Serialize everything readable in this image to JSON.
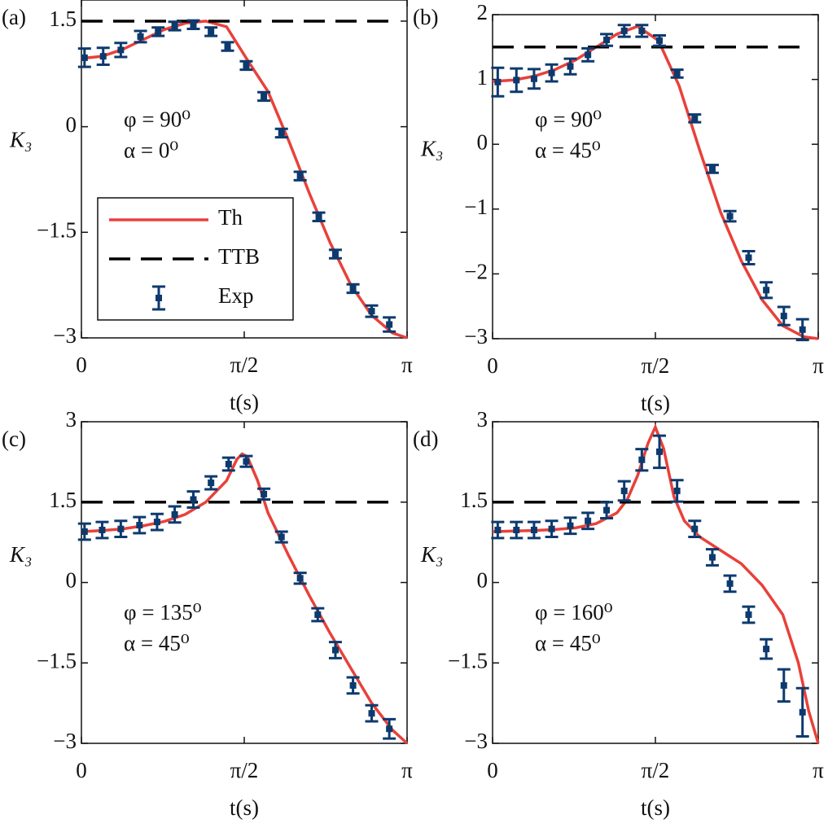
{
  "chart_data": [
    {
      "type": "line",
      "label": "(a)",
      "xlabel": "t(s)",
      "ylabel": "K₃",
      "annotations": [
        "φ = 90⁰",
        "α = 0⁰"
      ],
      "legend": "lower left",
      "xlim": [
        0,
        3.1416
      ],
      "xticks": [
        0,
        {
          "value": 1.5708,
          "label": "π/2"
        },
        {
          "value": 3.1416,
          "label": "π"
        }
      ],
      "ylim": [
        -3,
        1.8
      ],
      "yticks": [
        {
          "value": -3,
          "label": "−3"
        },
        {
          "value": -1.5,
          "label": "−1.5"
        },
        0,
        1.5
      ],
      "series": [
        {
          "name": "Th",
          "style": "solid",
          "color": "#e8413a",
          "x": [
            0,
            0.2,
            0.4,
            0.6,
            0.8,
            1.0,
            1.2,
            1.4,
            1.6,
            1.8,
            2.0,
            2.2,
            2.4,
            2.6,
            2.8,
            3.0,
            3.1416
          ],
          "values": [
            0.97,
            1.0,
            1.1,
            1.24,
            1.38,
            1.47,
            1.5,
            1.42,
            0.95,
            0.5,
            -0.2,
            -0.95,
            -1.65,
            -2.25,
            -2.68,
            -2.93,
            -3.0
          ]
        },
        {
          "name": "TTB",
          "style": "dashed",
          "color": "#000000",
          "x": [
            0,
            3.05
          ],
          "values": [
            1.5,
            1.5
          ]
        },
        {
          "name": "Exp",
          "style": "errorbar",
          "color": "#0d3a6e",
          "x": [
            0.03,
            0.21,
            0.38,
            0.57,
            0.74,
            0.9,
            1.08,
            1.25,
            1.41,
            1.59,
            1.76,
            1.93,
            2.11,
            2.29,
            2.45,
            2.62,
            2.8,
            2.97
          ],
          "values": [
            0.98,
            1.0,
            1.09,
            1.28,
            1.35,
            1.43,
            1.45,
            1.35,
            1.14,
            0.87,
            0.43,
            -0.09,
            -0.7,
            -1.28,
            -1.81,
            -2.3,
            -2.62,
            -2.81
          ],
          "errors": [
            0.13,
            0.12,
            0.1,
            0.08,
            0.06,
            0.06,
            0.06,
            0.06,
            0.06,
            0.06,
            0.06,
            0.06,
            0.06,
            0.06,
            0.06,
            0.06,
            0.08,
            0.1
          ]
        }
      ]
    },
    {
      "type": "line",
      "label": "(b)",
      "xlabel": "t(s)",
      "ylabel": "K₃",
      "annotations": [
        "φ = 90⁰",
        "α = 45⁰"
      ],
      "xlim": [
        0,
        3.1416
      ],
      "xticks": [
        0,
        {
          "value": 1.5708,
          "label": "π/2"
        },
        {
          "value": 3.1416,
          "label": "π"
        }
      ],
      "ylim": [
        -3,
        2
      ],
      "yticks": [
        {
          "value": -3,
          "label": "−3"
        },
        {
          "value": -2,
          "label": "−2"
        },
        {
          "value": -1,
          "label": "−1"
        },
        0,
        1,
        2
      ],
      "series": [
        {
          "style": "solid",
          "color": "#e8413a",
          "x": [
            0,
            0.2,
            0.4,
            0.6,
            0.8,
            1.0,
            1.2,
            1.4,
            1.6,
            1.8,
            2.0,
            2.2,
            2.4,
            2.6,
            2.8,
            3.0,
            3.1416
          ],
          "values": [
            0.97,
            0.99,
            1.05,
            1.15,
            1.3,
            1.5,
            1.7,
            1.82,
            1.6,
            0.9,
            -0.1,
            -1.05,
            -1.8,
            -2.4,
            -2.8,
            -2.97,
            -3.0
          ]
        },
        {
          "style": "dashed",
          "color": "#000000",
          "x": [
            0,
            3.05
          ],
          "values": [
            1.5,
            1.5
          ]
        },
        {
          "style": "errorbar",
          "color": "#0d3a6e",
          "x": [
            0.05,
            0.23,
            0.4,
            0.57,
            0.75,
            0.92,
            1.1,
            1.27,
            1.44,
            1.61,
            1.78,
            1.95,
            2.12,
            2.29,
            2.47,
            2.64,
            2.81,
            2.99
          ],
          "values": [
            0.96,
            0.99,
            1.01,
            1.1,
            1.2,
            1.38,
            1.61,
            1.75,
            1.75,
            1.6,
            1.09,
            0.4,
            -0.38,
            -1.11,
            -1.75,
            -2.25,
            -2.65,
            -2.86
          ],
          "errors": [
            0.22,
            0.18,
            0.15,
            0.13,
            0.12,
            0.1,
            0.09,
            0.09,
            0.09,
            0.08,
            0.06,
            0.06,
            0.06,
            0.08,
            0.1,
            0.12,
            0.14,
            0.16
          ]
        }
      ]
    },
    {
      "type": "line",
      "label": "(c)",
      "xlabel": "t(s)",
      "ylabel": "K₃",
      "annotations": [
        "φ = 135⁰",
        "α = 45⁰"
      ],
      "xlim": [
        0,
        3.1416
      ],
      "xticks": [
        0,
        {
          "value": 1.5708,
          "label": "π/2"
        },
        {
          "value": 3.1416,
          "label": "π"
        }
      ],
      "ylim": [
        -3,
        3
      ],
      "yticks": [
        {
          "value": -3,
          "label": "−3"
        },
        {
          "value": -1.5,
          "label": "−1.5"
        },
        0,
        1.5,
        3
      ],
      "series": [
        {
          "style": "solid",
          "color": "#e8413a",
          "x": [
            0,
            0.2,
            0.4,
            0.6,
            0.8,
            1.0,
            1.2,
            1.4,
            1.5,
            1.55,
            1.6,
            1.7,
            1.8,
            2.0,
            2.2,
            2.4,
            2.6,
            2.8,
            3.0,
            3.1416
          ],
          "values": [
            0.95,
            0.97,
            1.0,
            1.06,
            1.14,
            1.27,
            1.5,
            1.9,
            2.3,
            2.4,
            2.35,
            1.9,
            1.3,
            0.5,
            -0.25,
            -0.95,
            -1.6,
            -2.25,
            -2.75,
            -3.0
          ]
        },
        {
          "style": "dashed",
          "color": "#000000",
          "x": [
            0,
            3.05
          ],
          "values": [
            1.5,
            1.5
          ]
        },
        {
          "style": "errorbar",
          "color": "#0d3a6e",
          "x": [
            0.03,
            0.2,
            0.38,
            0.56,
            0.73,
            0.9,
            1.08,
            1.25,
            1.42,
            1.59,
            1.76,
            1.93,
            2.11,
            2.28,
            2.45,
            2.62,
            2.8,
            2.97
          ],
          "values": [
            0.95,
            0.98,
            1.0,
            1.07,
            1.13,
            1.27,
            1.55,
            1.86,
            2.21,
            2.26,
            1.65,
            0.85,
            0.08,
            -0.6,
            -1.26,
            -1.92,
            -2.44,
            -2.73
          ],
          "errors": [
            0.15,
            0.15,
            0.15,
            0.15,
            0.15,
            0.15,
            0.15,
            0.12,
            0.12,
            0.1,
            0.1,
            0.1,
            0.1,
            0.12,
            0.15,
            0.15,
            0.15,
            0.18
          ]
        }
      ]
    },
    {
      "type": "line",
      "label": "(d)",
      "xlabel": "t(s)",
      "ylabel": "K₃",
      "annotations": [
        "φ = 160⁰",
        "α = 45⁰"
      ],
      "xlim": [
        0,
        3.1416
      ],
      "xticks": [
        0,
        {
          "value": 1.5708,
          "label": "π/2"
        },
        {
          "value": 3.1416,
          "label": "π"
        }
      ],
      "ylim": [
        -3,
        3
      ],
      "yticks": [
        {
          "value": -3,
          "label": "−3"
        },
        {
          "value": -1.5,
          "label": "−1.5"
        },
        0,
        1.5,
        3
      ],
      "series": [
        {
          "style": "solid",
          "color": "#e8413a",
          "x": [
            0,
            0.2,
            0.4,
            0.6,
            0.8,
            1.0,
            1.2,
            1.3,
            1.4,
            1.5,
            1.57,
            1.65,
            1.75,
            1.85,
            2.0,
            2.2,
            2.4,
            2.6,
            2.8,
            2.95,
            3.05,
            3.1416
          ],
          "values": [
            0.95,
            0.96,
            0.97,
            0.99,
            1.02,
            1.1,
            1.3,
            1.55,
            2.0,
            2.6,
            2.9,
            2.5,
            1.6,
            1.15,
            0.85,
            0.6,
            0.35,
            -0.05,
            -0.6,
            -1.5,
            -2.4,
            -3.0
          ]
        },
        {
          "style": "dashed",
          "color": "#000000",
          "x": [
            0,
            3.05
          ],
          "values": [
            1.5,
            1.5
          ]
        },
        {
          "style": "errorbar",
          "color": "#0d3a6e",
          "x": [
            0.05,
            0.23,
            0.4,
            0.57,
            0.75,
            0.92,
            1.1,
            1.27,
            1.44,
            1.61,
            1.78,
            1.95,
            2.12,
            2.29,
            2.47,
            2.64,
            2.81,
            2.99
          ],
          "values": [
            0.98,
            0.98,
            0.98,
            1.0,
            1.06,
            1.15,
            1.35,
            1.71,
            2.29,
            2.44,
            1.71,
            1.0,
            0.47,
            -0.02,
            -0.6,
            -1.24,
            -1.92,
            -2.42
          ],
          "errors": [
            0.15,
            0.15,
            0.15,
            0.15,
            0.15,
            0.15,
            0.15,
            0.18,
            0.2,
            0.3,
            0.2,
            0.15,
            0.15,
            0.15,
            0.15,
            0.18,
            0.3,
            0.45
          ]
        }
      ]
    }
  ]
}
